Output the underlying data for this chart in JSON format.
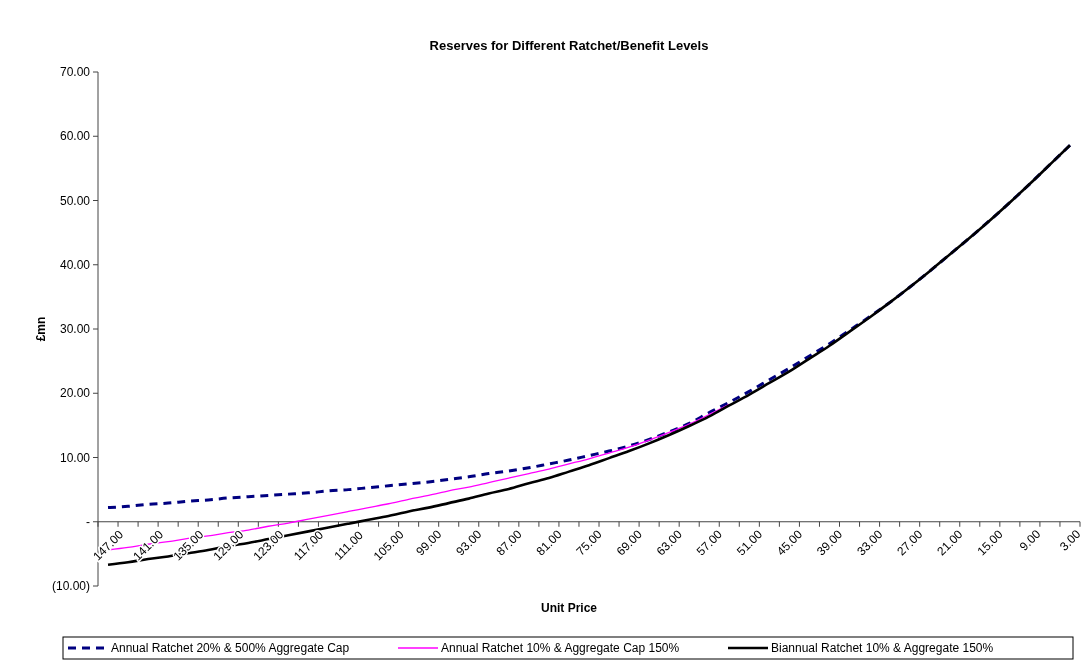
{
  "chart_data": {
    "type": "line",
    "title": "Reserves for Different Ratchet/Benefit Levels",
    "xlabel": "Unit Price",
    "ylabel": "£mn",
    "categories": [
      "147.00",
      null,
      "141.00",
      null,
      "135.00",
      null,
      "129.00",
      null,
      "123.00",
      null,
      "117.00",
      null,
      "111.00",
      null,
      "105.00",
      null,
      "99.00",
      null,
      "93.00",
      null,
      "87.00",
      null,
      "81.00",
      null,
      "75.00",
      null,
      "69.00",
      null,
      "63.00",
      null,
      "57.00",
      null,
      "51.00",
      null,
      "45.00",
      null,
      "39.00",
      null,
      "33.00",
      null,
      "27.00",
      null,
      "21.00",
      null,
      "15.00",
      null,
      "9.00",
      null,
      "3.00"
    ],
    "ylim": [
      -10,
      70
    ],
    "yticks": [
      {
        "value": -10,
        "label": "(10.00)"
      },
      {
        "value": 0,
        "label": "-"
      },
      {
        "value": 10,
        "label": "10.00"
      },
      {
        "value": 20,
        "label": "20.00"
      },
      {
        "value": 30,
        "label": "30.00"
      },
      {
        "value": 40,
        "label": "40.00"
      },
      {
        "value": 50,
        "label": "50.00"
      },
      {
        "value": 60,
        "label": "60.00"
      },
      {
        "value": 70,
        "label": "70.00"
      }
    ],
    "legend": "bottom",
    "grid": false,
    "series": [
      {
        "name": "Annual Ratchet 20% & 500% Aggregate Cap",
        "color": "#000080",
        "line_style": "dashed",
        "values": [
          2.2,
          2.4,
          2.7,
          2.9,
          3.2,
          3.4,
          3.7,
          3.9,
          4.1,
          4.3,
          4.5,
          4.8,
          5.0,
          5.3,
          5.6,
          5.9,
          6.2,
          6.6,
          7.0,
          7.5,
          7.9,
          8.4,
          9.0,
          9.6,
          10.3,
          11.0,
          11.8,
          12.8,
          14.0,
          15.3,
          17.0,
          18.6,
          20.3,
          22.1,
          23.9,
          25.8,
          27.7,
          29.8,
          31.9,
          34.1,
          36.5,
          39.0,
          41.6,
          44.2,
          46.9,
          49.7,
          52.6,
          55.6,
          58.6
        ]
      },
      {
        "name": "Annual Ratchet 10% & Aggregate Cap 150%",
        "color": "#ff00ff",
        "line_style": "solid",
        "values": [
          -4.4,
          -4.0,
          -3.5,
          -3.1,
          -2.6,
          -2.2,
          -1.7,
          -1.3,
          -0.7,
          -0.2,
          0.4,
          1.0,
          1.6,
          2.2,
          2.8,
          3.5,
          4.1,
          4.8,
          5.4,
          6.1,
          6.8,
          7.5,
          8.2,
          9.0,
          9.8,
          10.7,
          11.6,
          12.7,
          13.9,
          15.2,
          16.7,
          18.3,
          null,
          null,
          null,
          null,
          null,
          null,
          null,
          null,
          null,
          null,
          null,
          null,
          null,
          null,
          null,
          null,
          null
        ]
      },
      {
        "name": "Biannual Ratchet 10% & Aggregate 150%",
        "color": "#000000",
        "line_style": "solid",
        "values": [
          -6.7,
          -6.3,
          -5.8,
          -5.4,
          -4.9,
          -4.4,
          -3.8,
          -3.3,
          -2.7,
          -2.1,
          -1.5,
          -0.9,
          -0.3,
          0.3,
          0.9,
          1.6,
          2.2,
          2.9,
          3.6,
          4.4,
          5.1,
          6.0,
          6.8,
          7.8,
          8.8,
          9.9,
          11.0,
          12.2,
          13.5,
          14.9,
          16.4,
          18.1,
          19.8,
          21.6,
          23.4,
          25.4,
          27.4,
          29.6,
          31.8,
          34.1,
          36.5,
          39.0,
          41.6,
          44.2,
          46.9,
          49.7,
          52.6,
          55.6,
          58.6
        ]
      }
    ]
  }
}
